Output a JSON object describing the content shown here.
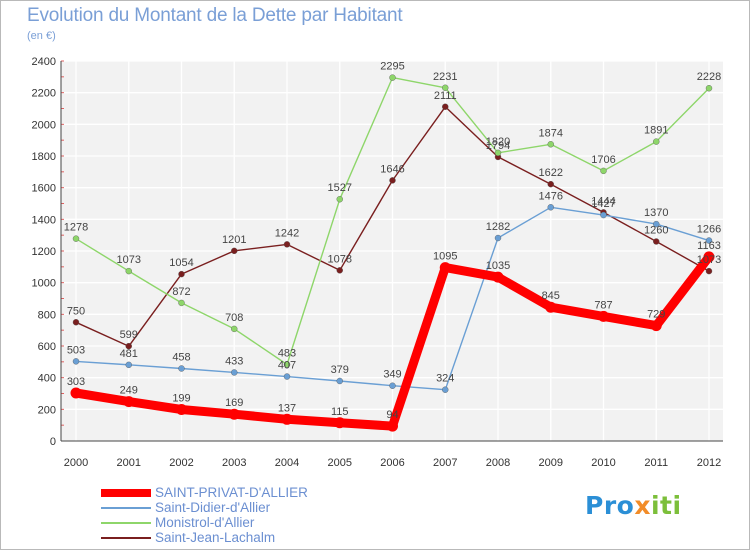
{
  "chart_data": {
    "type": "line",
    "title": "Evolution du Montant de la Dette par Habitant",
    "subtitle": "(en €)",
    "categories": [
      "2000",
      "2001",
      "2002",
      "2003",
      "2004",
      "2005",
      "2006",
      "2007",
      "2008",
      "2009",
      "2010",
      "2011",
      "2012"
    ],
    "ylim": [
      0,
      2400
    ],
    "yticks": [
      0,
      200,
      400,
      600,
      800,
      1000,
      1200,
      1400,
      1600,
      1800,
      2000,
      2200,
      2400
    ],
    "grid": true,
    "legend_position": "bottom-left",
    "series": [
      {
        "name": "SAINT-PRIVAT-D'ALLIER",
        "color": "#ff0000",
        "values": [
          303,
          249,
          199,
          169,
          137,
          115,
          94,
          1095,
          1035,
          845,
          787,
          729,
          1163
        ]
      },
      {
        "name": "Saint-Didier-d'Allier",
        "color": "#6a9fd4",
        "values": [
          503,
          481,
          458,
          433,
          407,
          379,
          349,
          324,
          1282,
          1476,
          1427,
          1370,
          1266
        ]
      },
      {
        "name": "Monistrol-d'Allier",
        "color": "#8ed66a",
        "values": [
          1278,
          1073,
          872,
          708,
          483,
          1527,
          2295,
          2231,
          1820,
          1874,
          1706,
          1891,
          2228
        ]
      },
      {
        "name": "Saint-Jean-Lachalm",
        "color": "#7a1f1f",
        "values": [
          750,
          599,
          1054,
          1201,
          1242,
          1078,
          1646,
          2111,
          1794,
          1622,
          1444,
          1260,
          1073
        ]
      }
    ]
  },
  "logo": {
    "part1": "Pro",
    "part2": "x",
    "part3": "iti"
  }
}
